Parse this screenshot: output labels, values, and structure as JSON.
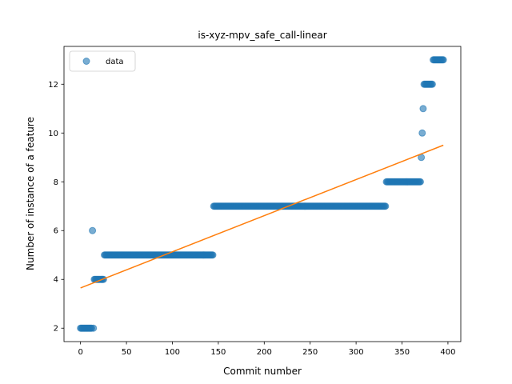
{
  "chart_data": {
    "type": "scatter",
    "title": "is-xyz-mpv_safe_call-linear",
    "xlabel": "Commit number",
    "ylabel": "Number of instance of a feature",
    "xlim": [
      -18,
      414
    ],
    "ylim": [
      1.45,
      13.55
    ],
    "xticks": [
      0,
      50,
      100,
      150,
      200,
      250,
      300,
      350,
      400
    ],
    "yticks": [
      2,
      4,
      6,
      8,
      10,
      12
    ],
    "legend": {
      "position": "top-left",
      "entries": [
        "data"
      ]
    },
    "grid": false,
    "colors": {
      "data": "#1f77b4",
      "fit": "#ff7f0e"
    },
    "segments": [
      {
        "x_start": 0,
        "x_end": 12,
        "y": 2
      },
      {
        "x_start": 13,
        "x_end": 13,
        "y": 6
      },
      {
        "x_start": 14,
        "x_end": 14,
        "y": 2
      },
      {
        "x_start": 15,
        "x_end": 25,
        "y": 4
      },
      {
        "x_start": 26,
        "x_end": 144,
        "y": 5
      },
      {
        "x_start": 145,
        "x_end": 332,
        "y": 7
      },
      {
        "x_start": 333,
        "x_end": 370,
        "y": 8
      },
      {
        "x_start": 371,
        "x_end": 371,
        "y": 9
      },
      {
        "x_start": 372,
        "x_end": 372,
        "y": 10
      },
      {
        "x_start": 373,
        "x_end": 373,
        "y": 11
      },
      {
        "x_start": 374,
        "x_end": 383,
        "y": 12
      },
      {
        "x_start": 384,
        "x_end": 395,
        "y": 13
      }
    ],
    "fit_line": {
      "x": [
        0,
        395
      ],
      "y": [
        3.65,
        9.5
      ]
    }
  }
}
